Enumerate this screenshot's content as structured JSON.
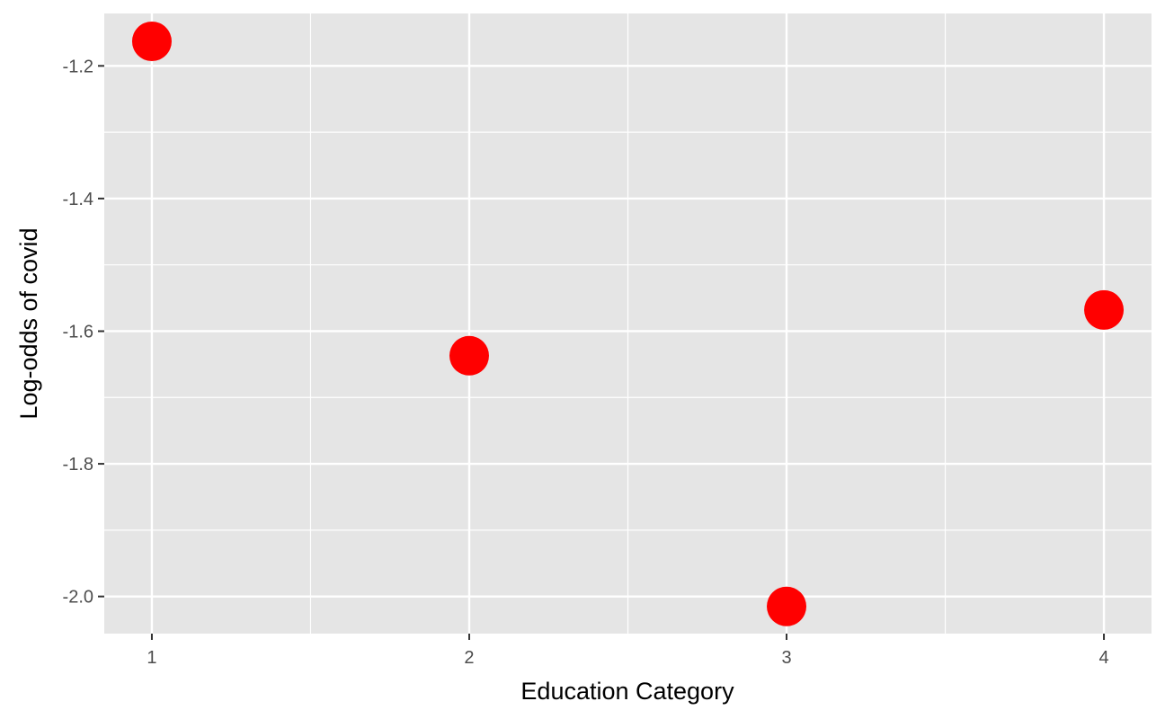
{
  "chart_data": {
    "type": "scatter",
    "title": "",
    "xlabel": "Education Category",
    "ylabel": "Log-odds of covid",
    "x": [
      1,
      2,
      3,
      4
    ],
    "y": [
      -1.163,
      -1.637,
      -2.015,
      -1.568
    ],
    "xlim": [
      0.85,
      4.15
    ],
    "ylim": [
      -2.056,
      -1.121
    ],
    "x_ticks": [
      1,
      2,
      3,
      4
    ],
    "x_tick_labels": [
      "1",
      "2",
      "3",
      "4"
    ],
    "y_ticks": [
      -2.0,
      -1.8,
      -1.6,
      -1.4,
      -1.2
    ],
    "y_tick_labels": [
      "-2.0",
      "-1.8",
      "-1.6",
      "-1.4",
      "-1.2"
    ],
    "grid": true,
    "legend": "none",
    "colors": {
      "point": "#ff0000",
      "panel_background": "#e5e5e5",
      "grid": "#ffffff",
      "tick_label": "#4d4d4d",
      "axis_title": "#000000"
    }
  }
}
